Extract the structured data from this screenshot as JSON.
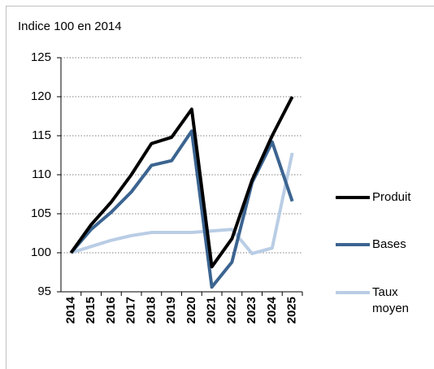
{
  "chart_data": {
    "type": "line",
    "ylabel": "Indice 100 en 2014",
    "x": [
      "2014",
      "2015",
      "2016",
      "2017",
      "2018",
      "2019",
      "2020",
      "2021",
      "2022",
      "2023",
      "2024",
      "2025"
    ],
    "series": [
      {
        "name": "Produit",
        "color": "#000000",
        "values": [
          100,
          103.6,
          106.5,
          110,
          114,
          114.8,
          118.4,
          98.2,
          101.8,
          109.3,
          115,
          120
        ]
      },
      {
        "name": "Bases",
        "color": "#3b6490",
        "values": [
          100,
          103,
          105.2,
          107.8,
          111.2,
          111.8,
          115.6,
          95.6,
          98.8,
          109,
          114.2,
          106.6
        ]
      },
      {
        "name": "Taux moyen",
        "color": "#b9cde5",
        "values": [
          100,
          100.8,
          101.6,
          102.2,
          102.6,
          102.6,
          102.6,
          102.8,
          103,
          99.9,
          100.6,
          112.8
        ]
      }
    ],
    "ylim": [
      95,
      125
    ],
    "yticks": [
      95,
      100,
      105,
      110,
      115,
      120,
      125
    ],
    "grid": true,
    "legend": "right"
  }
}
